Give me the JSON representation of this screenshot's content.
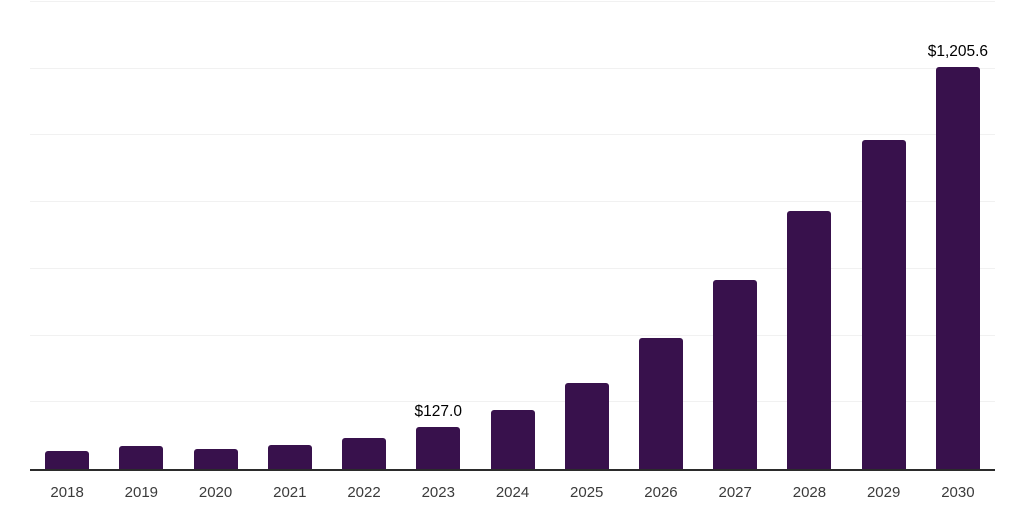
{
  "chart_data": {
    "type": "bar",
    "title": "",
    "xlabel": "",
    "ylabel": "",
    "categories": [
      "2018",
      "2019",
      "2020",
      "2021",
      "2022",
      "2023",
      "2024",
      "2025",
      "2026",
      "2027",
      "2028",
      "2029",
      "2030"
    ],
    "values": [
      55,
      68,
      60,
      71,
      92,
      127.0,
      177,
      259,
      393,
      568,
      772,
      987,
      1205.6
    ],
    "data_labels": {
      "2023": "$127.0",
      "2030": "$1,205.6"
    },
    "ylim": [
      0,
      1400
    ],
    "gridline_step": 200,
    "grid": true,
    "legend_position": "none",
    "colors": {
      "bar": "#38114c",
      "axis_line": "#2b2b2b",
      "gridline": "#f1f1f1",
      "tick_label": "#3b3b3b",
      "data_label": "#000000",
      "background": "#ffffff"
    }
  }
}
